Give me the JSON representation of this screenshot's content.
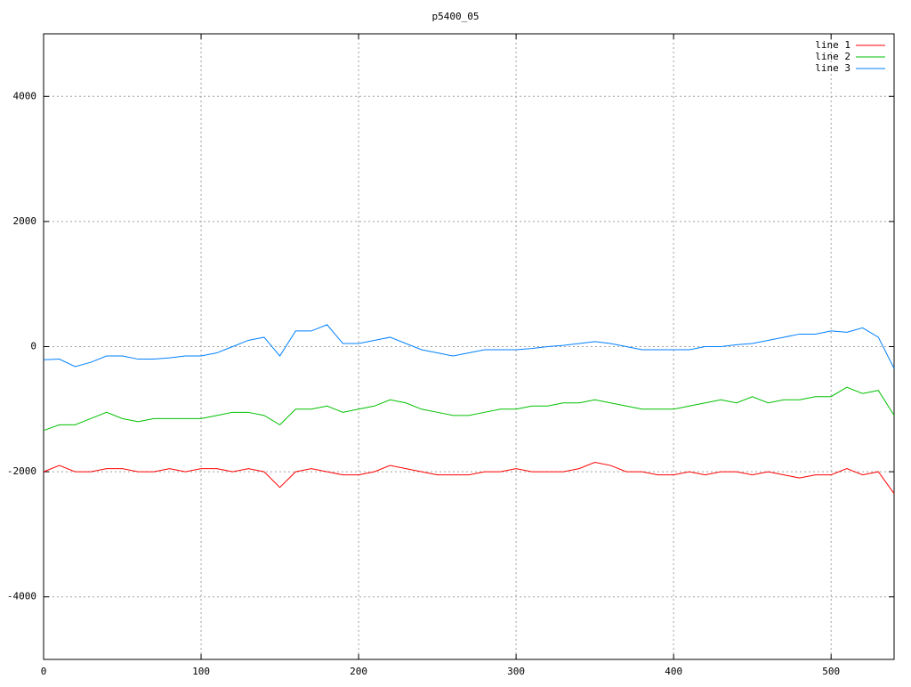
{
  "chart_data": {
    "type": "line",
    "title": "p5400_05",
    "x": [
      0,
      10,
      20,
      30,
      40,
      50,
      60,
      70,
      80,
      90,
      100,
      110,
      120,
      130,
      140,
      150,
      160,
      170,
      180,
      190,
      200,
      210,
      220,
      230,
      240,
      250,
      260,
      270,
      280,
      290,
      300,
      310,
      320,
      330,
      340,
      350,
      360,
      370,
      380,
      390,
      400,
      410,
      420,
      430,
      440,
      450,
      460,
      470,
      480,
      490,
      500,
      510,
      520,
      530,
      540
    ],
    "series": [
      {
        "name": "line 1",
        "color": "#ff0000",
        "values": [
          -2000,
          -1900,
          -2000,
          -2000,
          -1950,
          -1950,
          -2000,
          -2000,
          -1950,
          -2000,
          -1950,
          -1950,
          -2000,
          -1950,
          -2000,
          -2250,
          -2000,
          -1950,
          -2000,
          -2050,
          -2050,
          -2000,
          -1900,
          -1950,
          -2000,
          -2050,
          -2050,
          -2050,
          -2000,
          -2000,
          -1950,
          -2000,
          -2000,
          -2000,
          -1950,
          -1850,
          -1900,
          -2000,
          -2000,
          -2050,
          -2050,
          -2000,
          -2050,
          -2000,
          -2000,
          -2050,
          -2000,
          -2050,
          -2100,
          -2050,
          -2050,
          -1950,
          -2050,
          -2000,
          -2350
        ]
      },
      {
        "name": "line 2",
        "color": "#00c000",
        "values": [
          -1340,
          -1250,
          -1250,
          -1150,
          -1050,
          -1150,
          -1200,
          -1150,
          -1150,
          -1150,
          -1150,
          -1100,
          -1050,
          -1050,
          -1100,
          -1250,
          -1000,
          -1000,
          -950,
          -1050,
          -1000,
          -950,
          -850,
          -900,
          -1000,
          -1050,
          -1100,
          -1100,
          -1050,
          -1000,
          -1000,
          -950,
          -950,
          -900,
          -900,
          -850,
          -900,
          -950,
          -1000,
          -1000,
          -1000,
          -950,
          -900,
          -850,
          -900,
          -800,
          -900,
          -850,
          -850,
          -800,
          -800,
          -650,
          -750,
          -700,
          -1100
        ]
      },
      {
        "name": "line 3",
        "color": "#0080ff",
        "values": [
          -210,
          -200,
          -320,
          -250,
          -150,
          -150,
          -200,
          -200,
          -180,
          -150,
          -150,
          -100,
          0,
          100,
          150,
          -150,
          250,
          250,
          350,
          50,
          50,
          100,
          150,
          50,
          -50,
          -100,
          -150,
          -100,
          -50,
          -50,
          -50,
          -30,
          0,
          20,
          50,
          80,
          50,
          0,
          -50,
          -50,
          -50,
          -50,
          0,
          0,
          30,
          50,
          100,
          150,
          200,
          200,
          250,
          230,
          300,
          150,
          -350
        ]
      }
    ],
    "xlim": [
      0,
      540
    ],
    "ylim": [
      -5000,
      5000
    ],
    "xticks": [
      0,
      100,
      200,
      300,
      400,
      500
    ],
    "yticks": [
      -4000,
      -2000,
      0,
      2000,
      4000
    ],
    "grid": true,
    "legend": "top-right"
  }
}
